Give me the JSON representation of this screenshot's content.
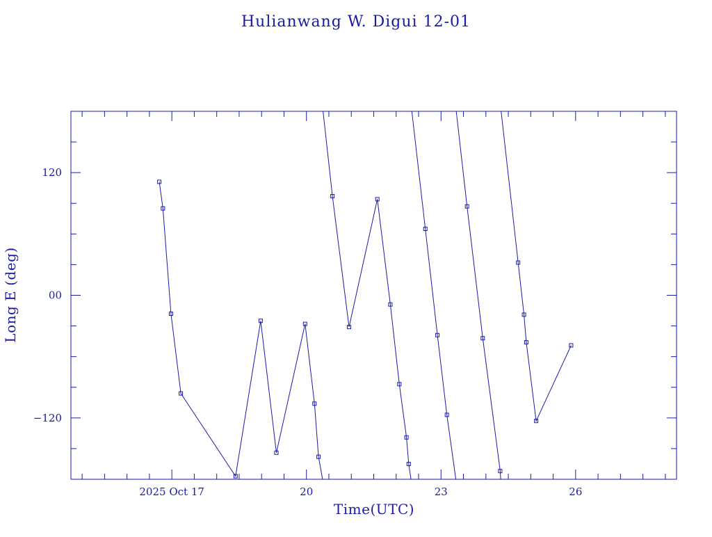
{
  "chart_data": {
    "type": "line",
    "title": "Hulianwang W. Digui 12-01",
    "xlabel": "Time(UTC)",
    "ylabel": "Long E (deg)",
    "x_tick_labels": [
      "2025 Oct 17",
      "20",
      "23",
      "26"
    ],
    "x_ticks": [
      17,
      20,
      23,
      26
    ],
    "y_tick_labels": [
      "120",
      "00",
      "−120"
    ],
    "y_ticks": [
      120,
      0,
      -120
    ],
    "xlim": [
      14.75,
      28.25
    ],
    "ylim": [
      -180,
      180
    ],
    "grid": false,
    "legend": "none",
    "colors": {
      "axis": "#1a1aa6",
      "series": "#1a1aa6"
    },
    "series": [
      {
        "values": [
          [
            16.72,
            111
          ],
          [
            16.8,
            85
          ],
          [
            16.98,
            -18
          ],
          [
            17.2,
            -96
          ],
          [
            18.42,
            -177
          ],
          [
            18.98,
            -25
          ],
          [
            19.33,
            -154
          ],
          [
            19.97,
            -28
          ],
          [
            20.18,
            -106
          ],
          [
            20.27,
            -158
          ],
          [
            20.36,
            -180
          ]
        ]
      },
      {
        "values": [
          [
            20.37,
            180
          ],
          [
            20.58,
            97
          ],
          [
            20.95,
            -31
          ],
          [
            21.58,
            94
          ],
          [
            21.87,
            -9
          ],
          [
            22.07,
            -87
          ],
          [
            22.23,
            -139
          ],
          [
            22.28,
            -165
          ],
          [
            22.33,
            -180
          ]
        ]
      },
      {
        "values": [
          [
            22.35,
            180
          ],
          [
            22.65,
            65
          ],
          [
            22.92,
            -39
          ],
          [
            23.13,
            -117
          ],
          [
            23.33,
            -180
          ]
        ]
      },
      {
        "values": [
          [
            23.34,
            180
          ],
          [
            23.58,
            87
          ],
          [
            23.93,
            -42
          ],
          [
            24.32,
            -172
          ],
          [
            24.33,
            -180
          ]
        ]
      },
      {
        "values": [
          [
            24.34,
            180
          ],
          [
            24.72,
            32
          ],
          [
            24.85,
            -19
          ],
          [
            24.9,
            -46
          ],
          [
            25.12,
            -123
          ],
          [
            25.9,
            -49
          ]
        ]
      }
    ]
  }
}
